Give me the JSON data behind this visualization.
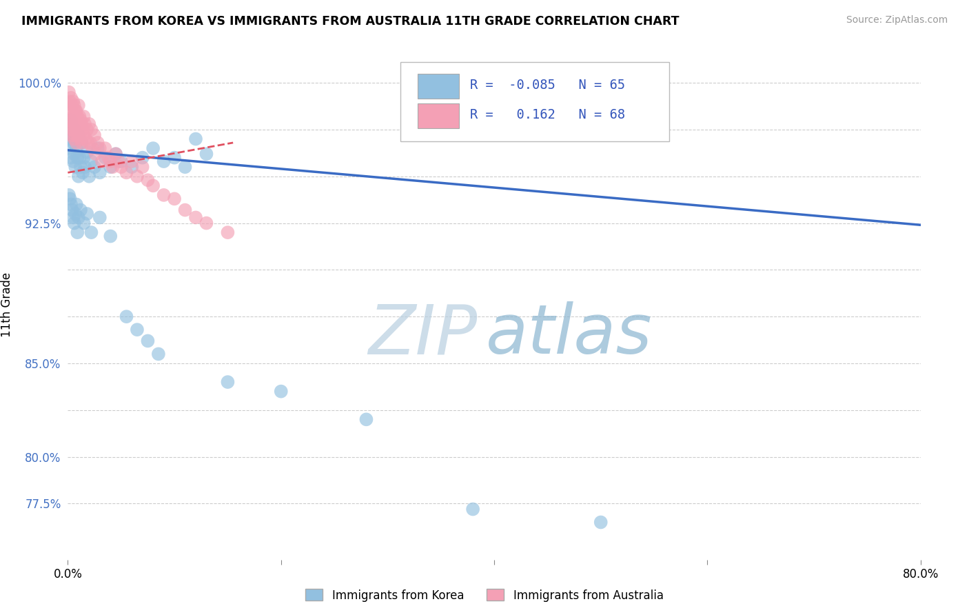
{
  "title": "IMMIGRANTS FROM KOREA VS IMMIGRANTS FROM AUSTRALIA 11TH GRADE CORRELATION CHART",
  "source": "Source: ZipAtlas.com",
  "ylabel": "11th Grade",
  "xmin": 0.0,
  "xmax": 0.8,
  "ymin": 0.745,
  "ymax": 1.018,
  "korea_R": -0.085,
  "korea_N": 65,
  "australia_R": 0.162,
  "australia_N": 68,
  "korea_color": "#92c0e0",
  "australia_color": "#f4a0b5",
  "korea_line_color": "#3a6bc4",
  "australia_line_color": "#e05060",
  "watermark_color": "#ccdded",
  "korea_x": [
    0.001,
    0.002,
    0.002,
    0.003,
    0.003,
    0.004,
    0.005,
    0.005,
    0.006,
    0.006,
    0.007,
    0.007,
    0.008,
    0.009,
    0.01,
    0.01,
    0.011,
    0.012,
    0.013,
    0.014,
    0.015,
    0.016,
    0.018,
    0.02,
    0.022,
    0.025,
    0.028,
    0.03,
    0.035,
    0.04,
    0.045,
    0.05,
    0.06,
    0.07,
    0.08,
    0.09,
    0.1,
    0.11,
    0.12,
    0.13,
    0.001,
    0.002,
    0.003,
    0.004,
    0.005,
    0.006,
    0.007,
    0.008,
    0.009,
    0.01,
    0.012,
    0.015,
    0.018,
    0.022,
    0.03,
    0.04,
    0.055,
    0.065,
    0.075,
    0.085,
    0.15,
    0.2,
    0.28,
    0.38,
    0.5
  ],
  "korea_y": [
    0.97,
    0.975,
    0.965,
    0.98,
    0.96,
    0.972,
    0.968,
    0.958,
    0.975,
    0.962,
    0.97,
    0.955,
    0.965,
    0.96,
    0.972,
    0.95,
    0.96,
    0.955,
    0.968,
    0.952,
    0.96,
    0.955,
    0.963,
    0.95,
    0.958,
    0.955,
    0.965,
    0.952,
    0.96,
    0.955,
    0.962,
    0.958,
    0.955,
    0.96,
    0.965,
    0.958,
    0.96,
    0.955,
    0.97,
    0.962,
    0.94,
    0.938,
    0.935,
    0.932,
    0.928,
    0.925,
    0.93,
    0.935,
    0.92,
    0.928,
    0.932,
    0.925,
    0.93,
    0.92,
    0.928,
    0.918,
    0.875,
    0.868,
    0.862,
    0.855,
    0.84,
    0.835,
    0.82,
    0.772,
    0.765
  ],
  "australia_x": [
    0.001,
    0.001,
    0.002,
    0.002,
    0.002,
    0.003,
    0.003,
    0.003,
    0.004,
    0.004,
    0.004,
    0.005,
    0.005,
    0.005,
    0.006,
    0.006,
    0.006,
    0.007,
    0.007,
    0.007,
    0.008,
    0.008,
    0.008,
    0.009,
    0.009,
    0.01,
    0.01,
    0.011,
    0.011,
    0.012,
    0.012,
    0.013,
    0.013,
    0.014,
    0.015,
    0.015,
    0.016,
    0.017,
    0.018,
    0.019,
    0.02,
    0.021,
    0.022,
    0.023,
    0.025,
    0.026,
    0.028,
    0.03,
    0.032,
    0.035,
    0.038,
    0.04,
    0.042,
    0.045,
    0.048,
    0.05,
    0.055,
    0.06,
    0.065,
    0.07,
    0.075,
    0.08,
    0.09,
    0.1,
    0.11,
    0.12,
    0.13,
    0.15
  ],
  "australia_y": [
    0.98,
    0.995,
    0.985,
    0.99,
    0.975,
    0.992,
    0.985,
    0.978,
    0.988,
    0.98,
    0.972,
    0.99,
    0.982,
    0.975,
    0.988,
    0.978,
    0.97,
    0.985,
    0.978,
    0.972,
    0.985,
    0.975,
    0.968,
    0.982,
    0.972,
    0.988,
    0.978,
    0.982,
    0.972,
    0.98,
    0.97,
    0.978,
    0.968,
    0.975,
    0.982,
    0.972,
    0.978,
    0.97,
    0.975,
    0.968,
    0.978,
    0.968,
    0.975,
    0.965,
    0.972,
    0.962,
    0.968,
    0.965,
    0.958,
    0.965,
    0.96,
    0.958,
    0.955,
    0.962,
    0.958,
    0.955,
    0.952,
    0.958,
    0.95,
    0.955,
    0.948,
    0.945,
    0.94,
    0.938,
    0.932,
    0.928,
    0.925,
    0.92
  ]
}
